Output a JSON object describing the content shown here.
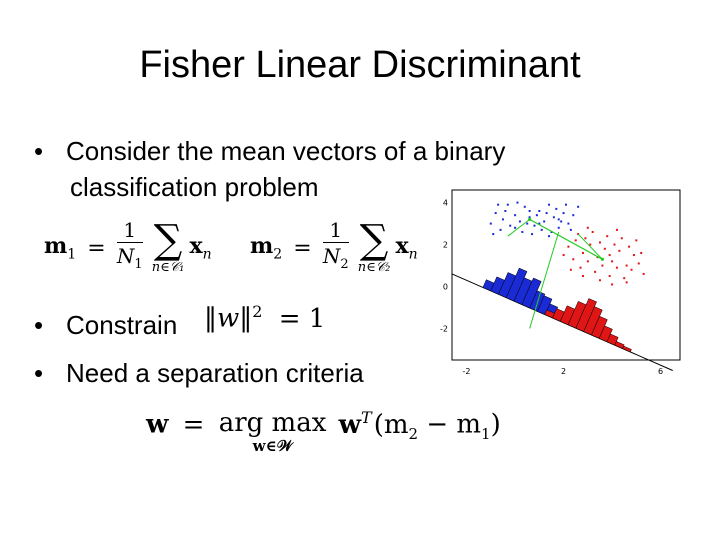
{
  "slide": {
    "title": "Fisher Linear Discriminant",
    "bullets": [
      {
        "line1": "Consider the mean vectors of a binary",
        "line2": "classification problem"
      },
      {
        "text": "Constrain"
      },
      {
        "text": "Need a separation criteria"
      }
    ],
    "bullet_symbol": "•"
  },
  "equations": {
    "m1": {
      "lhs": "m",
      "lhs_sub": "1",
      "eq": "=",
      "num": "1",
      "den": "N",
      "den_sub": "1",
      "sum": "∑",
      "sum_sub": "n∈𝒞₁",
      "term": "x",
      "term_sub": "n"
    },
    "m2": {
      "lhs": "m",
      "lhs_sub": "2",
      "eq": "=",
      "num": "1",
      "den": "N",
      "den_sub": "2",
      "sum": "∑",
      "sum_sub": "n∈𝒞₂",
      "term": "x",
      "term_sub": "n"
    },
    "constraint": {
      "lhs": "‖w‖",
      "sup": "2",
      "rhs": "= 1"
    },
    "criteria": {
      "lhs": "w",
      "eq": "=",
      "op": "arg max",
      "op_sub": "w∈𝒲",
      "w": "w",
      "sup": "T",
      "body": "(m",
      "s2": "2",
      "minus": " − m",
      "s1": "1",
      "close": ")"
    }
  },
  "chart_data": {
    "type": "scatter",
    "title": "",
    "xlabel": "",
    "ylabel": "",
    "xlim": [
      -2.6,
      6.8
    ],
    "ylim": [
      -3.5,
      4.6
    ],
    "x_ticks": [
      "-2",
      "2",
      "6"
    ],
    "x_tick_values": [
      -2,
      2,
      6
    ],
    "y_ticks": [
      "4",
      "2",
      "0",
      "-2"
    ],
    "y_tick_values": [
      4,
      2,
      0,
      -2
    ],
    "grid": false,
    "colors": {
      "class1": "#1a2bd6",
      "class2": "#e01515",
      "projection_line": "#000000",
      "connector": "#22cc22",
      "frame": "#000000"
    },
    "series": [
      {
        "points": [
          [
            -0.8,
            3.5
          ],
          [
            -0.5,
            3.2
          ],
          [
            -0.3,
            3.9
          ],
          [
            0,
            3.4
          ],
          [
            0.2,
            3.1
          ],
          [
            0.4,
            3.8
          ],
          [
            0.6,
            3.3
          ],
          [
            0.8,
            2.9
          ],
          [
            1,
            3.6
          ],
          [
            1.2,
            3.1
          ],
          [
            1.4,
            3.9
          ],
          [
            1.6,
            3.3
          ],
          [
            1.8,
            2.8
          ],
          [
            2,
            3.5
          ],
          [
            2.2,
            3.0
          ],
          [
            -1,
            3.0
          ],
          [
            -0.6,
            2.7
          ],
          [
            -0.2,
            2.9
          ],
          [
            0.3,
            2.6
          ],
          [
            0.7,
            2.5
          ],
          [
            1.1,
            2.7
          ],
          [
            1.5,
            2.6
          ],
          [
            1.9,
            3.1
          ],
          [
            2.4,
            3.4
          ],
          [
            2.6,
            3.8
          ],
          [
            -0.4,
            3.6
          ],
          [
            0.1,
            4.0
          ],
          [
            0.5,
            3.0
          ],
          [
            0.9,
            3.4
          ],
          [
            1.3,
            3.5
          ],
          [
            1.7,
            3.7
          ],
          [
            2.1,
            3.9
          ],
          [
            -0.7,
            3.9
          ],
          [
            -0.9,
            2.5
          ],
          [
            0.0,
            2.8
          ],
          [
            0.6,
            3.6
          ],
          [
            1.0,
            3.0
          ],
          [
            1.4,
            2.4
          ],
          [
            1.8,
            3.2
          ],
          [
            2.3,
            2.7
          ]
        ]
      },
      {
        "points": [
          [
            2.2,
            1.9
          ],
          [
            2.5,
            2.2
          ],
          [
            2.8,
            1.6
          ],
          [
            3.1,
            2.0
          ],
          [
            3.4,
            1.4
          ],
          [
            3.7,
            1.8
          ],
          [
            4.0,
            1.2
          ],
          [
            4.3,
            1.7
          ],
          [
            4.6,
            1.0
          ],
          [
            4.9,
            1.5
          ],
          [
            2.4,
            1.3
          ],
          [
            2.7,
            0.9
          ],
          [
            3.0,
            1.2
          ],
          [
            3.3,
            0.7
          ],
          [
            3.6,
            1.0
          ],
          [
            3.9,
            0.5
          ],
          [
            4.2,
            0.9
          ],
          [
            4.5,
            0.4
          ],
          [
            4.8,
            0.8
          ],
          [
            5.1,
            1.1
          ],
          [
            2.6,
            2.5
          ],
          [
            2.9,
            2.3
          ],
          [
            3.2,
            2.6
          ],
          [
            3.5,
            2.1
          ],
          [
            3.8,
            2.4
          ],
          [
            4.1,
            2.0
          ],
          [
            4.4,
            2.3
          ],
          [
            4.7,
            1.9
          ],
          [
            5.0,
            2.2
          ],
          [
            5.2,
            1.6
          ],
          [
            2.0,
            1.5
          ],
          [
            2.3,
            0.8
          ],
          [
            3.5,
            0.3
          ],
          [
            4.0,
            0.1
          ],
          [
            4.6,
            0.2
          ],
          [
            5.3,
            0.6
          ],
          [
            3.0,
            2.8
          ],
          [
            4.2,
            2.7
          ],
          [
            2.8,
            0.5
          ],
          [
            3.9,
            1.5
          ]
        ]
      }
    ],
    "histogram_class1": [
      0.25,
      0.45,
      0.7,
      0.95,
      0.75,
      0.85,
      0.55,
      0.5,
      0.35,
      0.2
    ],
    "histogram_class2": [
      0.15,
      0.3,
      0.5,
      0.75,
      0.95,
      0.8,
      0.6,
      0.4,
      0.25,
      0.12,
      0.08
    ]
  }
}
